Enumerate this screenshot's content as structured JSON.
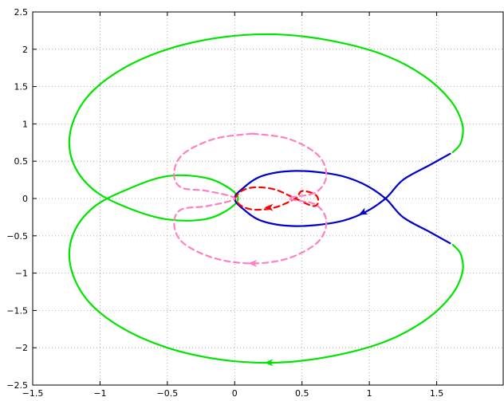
{
  "chart_data": {
    "type": "line",
    "title": "",
    "xlabel": "",
    "ylabel": "",
    "xlim": [
      -1.5,
      2.0
    ],
    "ylim": [
      -2.5,
      2.5
    ],
    "grid": true,
    "x_ticks": [
      -1.5,
      -1,
      -0.5,
      0,
      0.5,
      1,
      1.5
    ],
    "x_tick_labels": [
      "−1.5",
      "−1",
      "−0.5",
      "0",
      "0.5",
      "1",
      "1.5"
    ],
    "y_ticks": [
      -2.5,
      -2,
      -1.5,
      -1,
      -0.5,
      0,
      0.5,
      1,
      1.5,
      2,
      2.5
    ],
    "y_tick_labels": [
      "−2.5",
      "−2",
      "−1.5",
      "−1",
      "−0.5",
      "0",
      "0.5",
      "1",
      "1.5",
      "2",
      "2.5"
    ],
    "series": [
      {
        "color": "#00e400",
        "style": "solid",
        "points": [
          [
            1.62,
            0.62
          ],
          [
            1.68,
            0.75
          ],
          [
            1.69,
            1.0
          ],
          [
            1.6,
            1.32
          ],
          [
            1.4,
            1.65
          ],
          [
            1.1,
            1.93
          ],
          [
            0.7,
            2.12
          ],
          [
            0.3,
            2.2
          ],
          [
            -0.1,
            2.16
          ],
          [
            -0.5,
            2.0
          ],
          [
            -0.85,
            1.72
          ],
          [
            -1.1,
            1.35
          ],
          [
            -1.22,
            0.9
          ],
          [
            -1.2,
            0.48
          ],
          [
            -1.05,
            0.12
          ],
          [
            -0.8,
            -0.12
          ],
          [
            -0.5,
            -0.28
          ],
          [
            -0.2,
            -0.27
          ],
          [
            0.0,
            -0.08
          ],
          [
            0.0,
            0.08
          ],
          [
            -0.2,
            0.27
          ],
          [
            -0.5,
            0.3
          ],
          [
            -0.8,
            0.12
          ],
          [
            -1.05,
            -0.12
          ],
          [
            -1.2,
            -0.48
          ],
          [
            -1.22,
            -0.9
          ],
          [
            -1.1,
            -1.35
          ],
          [
            -0.85,
            -1.72
          ],
          [
            -0.5,
            -2.0
          ],
          [
            -0.1,
            -2.16
          ],
          [
            0.3,
            -2.2
          ],
          [
            0.7,
            -2.12
          ],
          [
            1.1,
            -1.93
          ],
          [
            1.4,
            -1.65
          ],
          [
            1.6,
            -1.32
          ],
          [
            1.69,
            -1.0
          ],
          [
            1.68,
            -0.75
          ],
          [
            1.62,
            -0.62
          ]
        ],
        "arrows": [
          [
            0.22,
            -2.2,
            -1,
            0
          ]
        ]
      },
      {
        "color": "#0000cc",
        "style": "solid",
        "points": [
          [
            1.6,
            0.6
          ],
          [
            1.45,
            0.45
          ],
          [
            1.25,
            0.25
          ],
          [
            1.12,
            0.0
          ],
          [
            0.95,
            -0.2
          ],
          [
            0.75,
            -0.32
          ],
          [
            0.45,
            -0.37
          ],
          [
            0.2,
            -0.3
          ],
          [
            0.05,
            -0.12
          ],
          [
            0.0,
            0.0
          ],
          [
            0.05,
            0.12
          ],
          [
            0.2,
            0.3
          ],
          [
            0.45,
            0.37
          ],
          [
            0.75,
            0.32
          ],
          [
            0.95,
            0.2
          ],
          [
            1.12,
            0.0
          ],
          [
            1.25,
            -0.25
          ],
          [
            1.45,
            -0.45
          ],
          [
            1.6,
            -0.6
          ]
        ],
        "arrows": [
          [
            0.92,
            -0.22,
            -1,
            -0.5
          ]
        ]
      },
      {
        "color": "#ff0000",
        "style": "dashed",
        "points": [
          [
            0.0,
            0.0
          ],
          [
            0.05,
            0.1
          ],
          [
            0.15,
            0.15
          ],
          [
            0.3,
            0.12
          ],
          [
            0.45,
            0.0
          ],
          [
            0.58,
            -0.1
          ],
          [
            0.62,
            -0.05
          ],
          [
            0.6,
            0.05
          ],
          [
            0.5,
            0.1
          ],
          [
            0.45,
            0.0
          ],
          [
            0.3,
            -0.12
          ],
          [
            0.15,
            -0.15
          ],
          [
            0.05,
            -0.1
          ],
          [
            0.0,
            0.0
          ]
        ],
        "arrows": [
          [
            0.22,
            -0.12,
            -1,
            0
          ]
        ]
      },
      {
        "color": "#ff80c0",
        "style": "dashed",
        "points": [
          [
            0.13,
            0.87
          ],
          [
            -0.15,
            0.8
          ],
          [
            -0.38,
            0.6
          ],
          [
            -0.45,
            0.35
          ],
          [
            -0.4,
            0.15
          ],
          [
            -0.2,
            0.1
          ],
          [
            0.0,
            0.0
          ],
          [
            -0.2,
            -0.1
          ],
          [
            -0.4,
            -0.15
          ],
          [
            -0.45,
            -0.35
          ],
          [
            -0.38,
            -0.6
          ],
          [
            -0.15,
            -0.8
          ],
          [
            0.13,
            -0.87
          ],
          [
            0.4,
            -0.8
          ],
          [
            0.62,
            -0.58
          ],
          [
            0.68,
            -0.3
          ],
          [
            0.6,
            -0.08
          ],
          [
            0.4,
            0.0
          ],
          [
            0.6,
            0.08
          ],
          [
            0.68,
            0.3
          ],
          [
            0.62,
            0.58
          ],
          [
            0.4,
            0.8
          ],
          [
            0.13,
            0.87
          ]
        ],
        "arrows": [
          [
            0.1,
            -0.87,
            -1,
            0
          ]
        ]
      }
    ]
  }
}
